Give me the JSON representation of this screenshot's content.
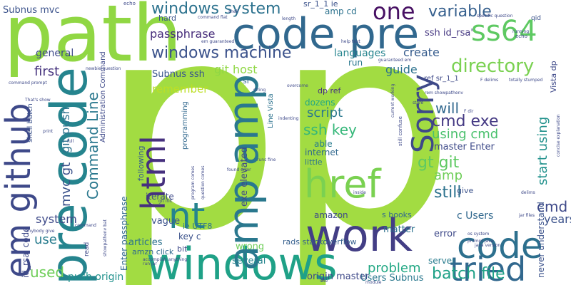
{
  "words": [
    {
      "text": "pp",
      "color": "#a2dc42"
    },
    {
      "text": "path",
      "color": "#90d743"
    },
    {
      "text": "code pre",
      "color": "#31688e"
    },
    {
      "text": "windows",
      "color": "#1fa187"
    },
    {
      "text": "work",
      "color": "#433e85"
    },
    {
      "text": "pre code",
      "color": "#25848e"
    },
    {
      "text": "em github",
      "color": "#3e4989"
    },
    {
      "text": "amp amp",
      "color": "#2a788e"
    },
    {
      "text": "code",
      "color": "#2d708e"
    },
    {
      "text": "tried",
      "color": "#31688e"
    },
    {
      "text": "nt",
      "color": "#25848e"
    },
    {
      "text": "href",
      "color": "#7ad151"
    },
    {
      "text": "html",
      "color": "#46307e"
    },
    {
      "text": "Sorry",
      "color": "#3e4989"
    },
    {
      "text": "ss64",
      "color": "#5ec962"
    },
    {
      "text": "windows system",
      "color": "#2c728e"
    },
    {
      "text": "windows machine",
      "color": "#3b528b"
    },
    {
      "text": "one",
      "color": "#471063"
    },
    {
      "text": "variable",
      "color": "#355f8d"
    },
    {
      "text": "directory",
      "color": "#7ad151"
    },
    {
      "text": "Command Line",
      "color": "#2a788e"
    },
    {
      "text": "passphrase",
      "color": "#472d7b"
    },
    {
      "text": "ssh key",
      "color": "#35b779"
    },
    {
      "text": "cmd exe",
      "color": "#443983"
    },
    {
      "text": "using cmd",
      "color": "#4ac16d"
    },
    {
      "text": "batch file",
      "color": "#1fa187"
    },
    {
      "text": "gt git",
      "color": "#5ec962"
    },
    {
      "text": "cmd",
      "color": "#3e4989"
    },
    {
      "text": "will",
      "color": "#31688e"
    },
    {
      "text": "still",
      "color": "#2c728e"
    },
    {
      "text": "amp",
      "color": "#6ece58"
    },
    {
      "text": "script",
      "color": "#2a788e"
    },
    {
      "text": "problem",
      "color": "#22a884"
    },
    {
      "text": "used",
      "color": "#6ece58"
    },
    {
      "text": "use",
      "color": "#287c8e"
    },
    {
      "text": "system",
      "color": "#3e4a89"
    },
    {
      "text": "first",
      "color": "#46337e"
    },
    {
      "text": "mvc gt",
      "color": "#3b528b"
    },
    {
      "text": "git push",
      "color": "#2c728e"
    },
    {
      "text": "git host",
      "color": "#8fd744"
    },
    {
      "text": "remember",
      "color": "#bddf26"
    },
    {
      "text": "guide",
      "color": "#2c728e"
    },
    {
      "text": "create",
      "color": "#365c8d"
    },
    {
      "text": "start using",
      "color": "#21918c"
    },
    {
      "text": "years",
      "color": "#3b528b"
    },
    {
      "text": "languages",
      "color": "#25848e"
    },
    {
      "text": "general",
      "color": "#3e4989"
    },
    {
      "text": "Subnus ssh",
      "color": "#39568c"
    },
    {
      "text": "Subnus mvc",
      "color": "#3b528b"
    },
    {
      "text": "ssh id_rsa'",
      "color": "#453781"
    },
    {
      "text": "amp cd",
      "color": "#2c728e"
    },
    {
      "text": "hard",
      "color": "#3b528b"
    },
    {
      "text": "run",
      "color": "#2a788e"
    },
    {
      "text": "push origin",
      "color": "#21918c"
    },
    {
      "text": "Users Subnus",
      "color": "#2a788e"
    },
    {
      "text": "origin master",
      "color": "#3e4989"
    },
    {
      "text": "articles",
      "color": "#2c728e"
    },
    {
      "text": "several",
      "color": "#25848e"
    },
    {
      "text": "wrong",
      "color": "#6ece58"
    },
    {
      "text": "vague",
      "color": "#3b528b"
    },
    {
      "text": "amazon",
      "color": "#3e4989"
    },
    {
      "text": "matter",
      "color": "#2c728e"
    },
    {
      "text": "error",
      "color": "#3e4989"
    },
    {
      "text": "server",
      "color": "#287c8e"
    },
    {
      "text": "c Users",
      "color": "#31688e"
    },
    {
      "text": "key c",
      "color": "#3b528b"
    },
    {
      "text": "iterate",
      "color": "#3e4989"
    },
    {
      "text": "dozens",
      "color": "#22a884"
    },
    {
      "text": "internet",
      "color": "#31688e"
    },
    {
      "text": "little",
      "color": "#2c728e"
    },
    {
      "text": "able",
      "color": "#287c8e"
    },
    {
      "text": "following",
      "color": "#365c8d"
    },
    {
      "text": "exe elevated",
      "color": "#3e4989"
    },
    {
      "text": "rads stackoverflow",
      "color": "#355f8d"
    },
    {
      "text": "master Enter",
      "color": "#3e4a89"
    },
    {
      "text": "never understand",
      "color": "#3b528b"
    },
    {
      "text": "Vista dp",
      "color": "#3e4989"
    },
    {
      "text": "s books",
      "color": "#31688e"
    },
    {
      "text": "give",
      "color": "#3b528b"
    },
    {
      "text": "id_rsa' code",
      "color": "#3e4989"
    },
    {
      "text": "Enter passphrase",
      "color": "#31688e"
    },
    {
      "text": "ie UTF8",
      "color": "#2c728e"
    },
    {
      "text": "bit",
      "color": "#3e4989"
    },
    {
      "text": "amzn click",
      "color": "#31688e"
    },
    {
      "text": "dp ref",
      "color": "#46307e"
    },
    {
      "text": "ref sr_1_1",
      "color": "#3e4989"
    },
    {
      "text": "sr_1_1 ie",
      "color": "#3b528b"
    },
    {
      "text": "sr",
      "color": "#31688e"
    },
    {
      "text": "shell batch",
      "color": "#3b528b"
    },
    {
      "text": "Administration Command",
      "color": "#3e4989"
    },
    {
      "text": "programming",
      "color": "#31688e"
    },
    {
      "text": "Line Vista",
      "color": "#2c728e"
    },
    {
      "text": "echo",
      "color": "#3e4989"
    },
    {
      "text": "qid",
      "color": "#3b528b"
    },
    {
      "text": "command flat",
      "color": "#3e4989"
    },
    {
      "text": "em guaranteed",
      "color": "#3e4989"
    },
    {
      "text": "guaranteed em",
      "color": "#3e4989"
    },
    {
      "text": "totally stumped",
      "color": "#3e4989"
    },
    {
      "text": "java version",
      "color": "#3e4989"
    },
    {
      "text": "os system",
      "color": "#3e4989"
    },
    {
      "text": "jar files",
      "color": "#3e4989"
    },
    {
      "text": "found error",
      "color": "#3e4989"
    },
    {
      "text": "runs fine",
      "color": "#3e4989"
    },
    {
      "text": "git init",
      "color": "#3e4989"
    },
    {
      "text": "newbie question",
      "color": "#3e4989"
    },
    {
      "text": "command prompt",
      "color": "#3e4989"
    },
    {
      "text": "That's show",
      "color": "#3e4989"
    },
    {
      "text": "anybody give",
      "color": "#3e4989"
    },
    {
      "text": "rem showpathenv",
      "color": "#3e4989"
    },
    {
      "text": "accomplish anything",
      "color": "#3e4989"
    },
    {
      "text": "run jar",
      "color": "#3e4989"
    },
    {
      "text": "still confuse",
      "color": "#3e4989"
    },
    {
      "text": "current working",
      "color": "#3e4989"
    },
    {
      "text": "concise explanation",
      "color": "#3e4989"
    },
    {
      "text": "specific question",
      "color": "#3e4989"
    },
    {
      "text": "help text",
      "color": "#3e4989"
    },
    {
      "text": "program comes",
      "color": "#3e4989"
    },
    {
      "text": "question comes",
      "color": "#3e4989"
    },
    {
      "text": "prompt java",
      "color": "#3e4989"
    },
    {
      "text": "showpathenv bat",
      "color": "#3e4989"
    },
    {
      "text": "F delims",
      "color": "#3e4989"
    },
    {
      "text": "F dir",
      "color": "#3e4989"
    },
    {
      "text": "inside",
      "color": "#3e4989"
    },
    {
      "text": "overcome",
      "color": "#3e4989"
    },
    {
      "text": "string",
      "color": "#3e4989"
    },
    {
      "text": "store",
      "color": "#3e4989"
    },
    {
      "text": "indenting",
      "color": "#3e4989"
    },
    {
      "text": "running",
      "color": "#3e4989"
    },
    {
      "text": "length",
      "color": "#3e4989"
    },
    {
      "text": "shell",
      "color": "#3e4989"
    },
    {
      "text": "full",
      "color": "#3e4989"
    },
    {
      "text": "print",
      "color": "#3e4989"
    },
    {
      "text": "module",
      "color": "#3e4989"
    },
    {
      "text": "command",
      "color": "#3e4989"
    },
    {
      "text": "read",
      "color": "#3e4989"
    },
    {
      "text": "echo",
      "color": "#3e4989"
    },
    {
      "text": "file",
      "color": "#3e4989"
    },
    {
      "text": "delims",
      "color": "#3e4989"
    }
  ]
}
